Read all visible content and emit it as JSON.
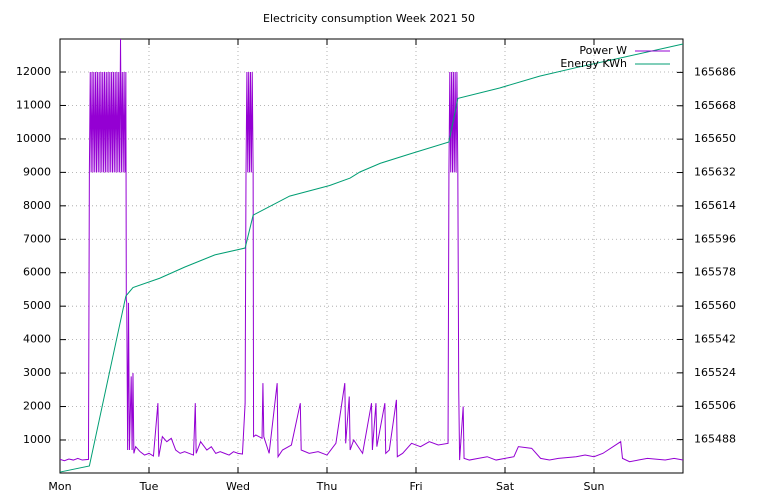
{
  "chart_data": {
    "type": "line",
    "title": "Electricity consumption Week 2021 50",
    "xlim": [
      0,
      7
    ],
    "xticks": [
      {
        "value": 0,
        "label": "Mon"
      },
      {
        "value": 1,
        "label": "Tue"
      },
      {
        "value": 2,
        "label": "Wed"
      },
      {
        "value": 3,
        "label": "Thu"
      },
      {
        "value": 4,
        "label": "Fri"
      },
      {
        "value": 5,
        "label": "Sat"
      },
      {
        "value": 6,
        "label": "Sun"
      }
    ],
    "ylim": [
      13,
      12987
    ],
    "yticks": [
      1000,
      2000,
      3000,
      4000,
      5000,
      6000,
      7000,
      8000,
      9000,
      10000,
      11000,
      12000
    ],
    "y2lim": [
      165470,
      165704
    ],
    "y2ticks": [
      165488,
      165506,
      165524,
      165542,
      165560,
      165578,
      165596,
      165614,
      165632,
      165650,
      165668,
      165686
    ],
    "grid": true,
    "legend": "top-right",
    "series": [
      {
        "name": "Power W",
        "color": "#9400d3",
        "x": [
          0,
          0.05,
          0.1,
          0.15,
          0.2,
          0.25,
          0.32,
          0.33,
          0.34,
          0.35,
          0.36,
          0.37,
          0.38,
          0.39,
          0.4,
          0.41,
          0.42,
          0.43,
          0.44,
          0.45,
          0.46,
          0.47,
          0.48,
          0.49,
          0.5,
          0.51,
          0.52,
          0.53,
          0.54,
          0.55,
          0.56,
          0.57,
          0.58,
          0.59,
          0.6,
          0.61,
          0.62,
          0.63,
          0.64,
          0.65,
          0.66,
          0.67,
          0.68,
          0.69,
          0.7,
          0.71,
          0.72,
          0.73,
          0.74,
          0.745,
          0.75,
          0.76,
          0.77,
          0.78,
          0.8,
          0.81,
          0.82,
          0.83,
          0.85,
          0.9,
          0.95,
          1.0,
          1.05,
          1.1,
          1.11,
          1.15,
          1.2,
          1.25,
          1.3,
          1.35,
          1.4,
          1.5,
          1.52,
          1.53,
          1.58,
          1.65,
          1.7,
          1.75,
          1.8,
          1.85,
          1.9,
          1.95,
          2.0,
          2.05,
          2.08,
          2.09,
          2.1,
          2.11,
          2.12,
          2.13,
          2.14,
          2.15,
          2.16,
          2.17,
          2.175,
          2.2,
          2.27,
          2.28,
          2.29,
          2.35,
          2.44,
          2.45,
          2.5,
          2.6,
          2.7,
          2.71,
          2.8,
          2.9,
          3.0,
          3.1,
          3.2,
          3.21,
          3.25,
          3.26,
          3.3,
          3.4,
          3.5,
          3.51,
          3.55,
          3.56,
          3.65,
          3.66,
          3.7,
          3.78,
          3.79,
          3.85,
          3.95,
          4.05,
          4.15,
          4.25,
          4.36,
          4.37,
          4.38,
          4.39,
          4.4,
          4.41,
          4.42,
          4.43,
          4.44,
          4.45,
          4.46,
          4.47,
          4.48,
          4.49,
          4.53,
          4.54,
          4.6,
          4.7,
          4.8,
          4.9,
          5.0,
          5.1,
          5.15,
          5.3,
          5.4,
          5.5,
          5.6,
          5.8,
          5.9,
          6.0,
          6.1,
          6.3,
          6.32,
          6.4,
          6.5,
          6.6,
          6.8,
          6.9,
          7.0
        ],
        "values": [
          420,
          380,
          430,
          400,
          450,
          400,
          420,
          9000,
          12000,
          9000,
          12000,
          9000,
          12000,
          9000,
          12000,
          9000,
          12000,
          9000,
          12000,
          9000,
          12000,
          9000,
          12000,
          9000,
          12000,
          9000,
          12000,
          9000,
          12000,
          9000,
          12000,
          9000,
          12000,
          9000,
          12000,
          9000,
          12000,
          9000,
          12000,
          9000,
          12000,
          9000,
          12987,
          9000,
          12000,
          9000,
          12000,
          9000,
          12000,
          5200,
          5100,
          700,
          5100,
          700,
          2900,
          700,
          3000,
          600,
          800,
          650,
          550,
          600,
          520,
          2100,
          500,
          1100,
          950,
          1050,
          700,
          600,
          650,
          550,
          2100,
          600,
          950,
          700,
          800,
          600,
          650,
          600,
          550,
          650,
          600,
          580,
          2100,
          9000,
          12000,
          9000,
          12000,
          9000,
          12000,
          9000,
          12000,
          9000,
          1100,
          1150,
          1050,
          2700,
          1100,
          600,
          2700,
          500,
          700,
          850,
          2100,
          700,
          600,
          650,
          550,
          900,
          2700,
          900,
          2300,
          700,
          1000,
          600,
          2100,
          700,
          2100,
          800,
          2100,
          600,
          700,
          2200,
          500,
          600,
          900,
          800,
          950,
          850,
          900,
          9000,
          12000,
          9000,
          12000,
          9000,
          12000,
          9000,
          12000,
          9000,
          12000,
          9000,
          2500,
          400,
          2000,
          450,
          400,
          450,
          500,
          400,
          450,
          500,
          800,
          750,
          450,
          400,
          450,
          500,
          550,
          500,
          600,
          950,
          450,
          350,
          400,
          450,
          400,
          450,
          400
        ]
      },
      {
        "name": "Energy KWh",
        "color": "#009e73",
        "axis": "y2",
        "x": [
          0,
          0.33,
          0.74,
          0.82,
          1.12,
          1.4,
          1.74,
          2.08,
          2.17,
          2.58,
          3.03,
          3.26,
          3.37,
          3.6,
          3.93,
          4.37,
          4.47,
          4.94,
          5.39,
          5.84,
          6.29,
          7.0
        ],
        "values": [
          165470.5,
          165473.8,
          165565.4,
          165570,
          165575,
          165581,
          165587.6,
          165591.3,
          165609,
          165619.3,
          165625,
          165629,
          165632.3,
          165637,
          165642,
          165648.5,
          165672,
          165677.6,
          165684,
          165689,
          165693.7,
          165701.3
        ]
      }
    ]
  }
}
